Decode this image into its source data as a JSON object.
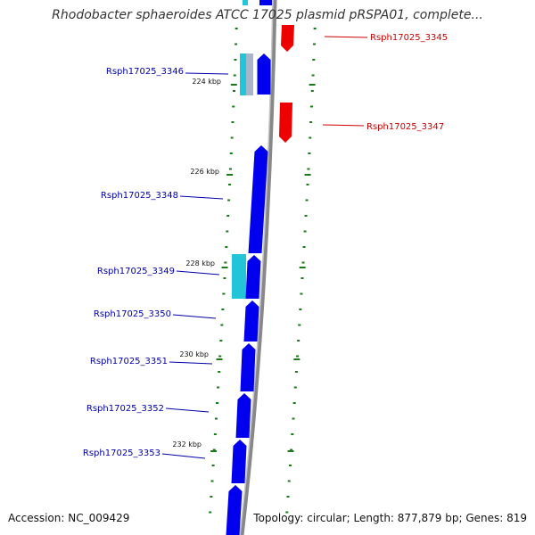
{
  "title": "Rhodobacter sphaeroides ATCC 17025 plasmid pRSPA01, complete...",
  "footer": {
    "accession": "Accession: NC_009429",
    "summary": "Topology: circular; Length: 877,879 bp; Genes: 819"
  },
  "colors": {
    "forward_cds": "#0000ee",
    "reverse_cds": "#ee0000",
    "rna": "#22c4d8",
    "backbone": "#888888",
    "ticks": "#1a7a1a",
    "forward_label": "#0000aa",
    "reverse_label": "#cc0000"
  },
  "genes": [
    {
      "name": "Rsph17025_3345",
      "strand": "reverse"
    },
    {
      "name": "Rsph17025_3346",
      "strand": "forward"
    },
    {
      "name": "Rsph17025_3347",
      "strand": "reverse"
    },
    {
      "name": "Rsph17025_3348",
      "strand": "forward"
    },
    {
      "name": "Rsph17025_3349",
      "strand": "forward"
    },
    {
      "name": "Rsph17025_3350",
      "strand": "forward"
    },
    {
      "name": "Rsph17025_3351",
      "strand": "forward"
    },
    {
      "name": "Rsph17025_3352",
      "strand": "forward"
    },
    {
      "name": "Rsph17025_3353",
      "strand": "forward"
    }
  ],
  "kbp_labels": [
    "224 kbp",
    "226 kbp",
    "228 kbp",
    "230 kbp",
    "232 kbp"
  ]
}
